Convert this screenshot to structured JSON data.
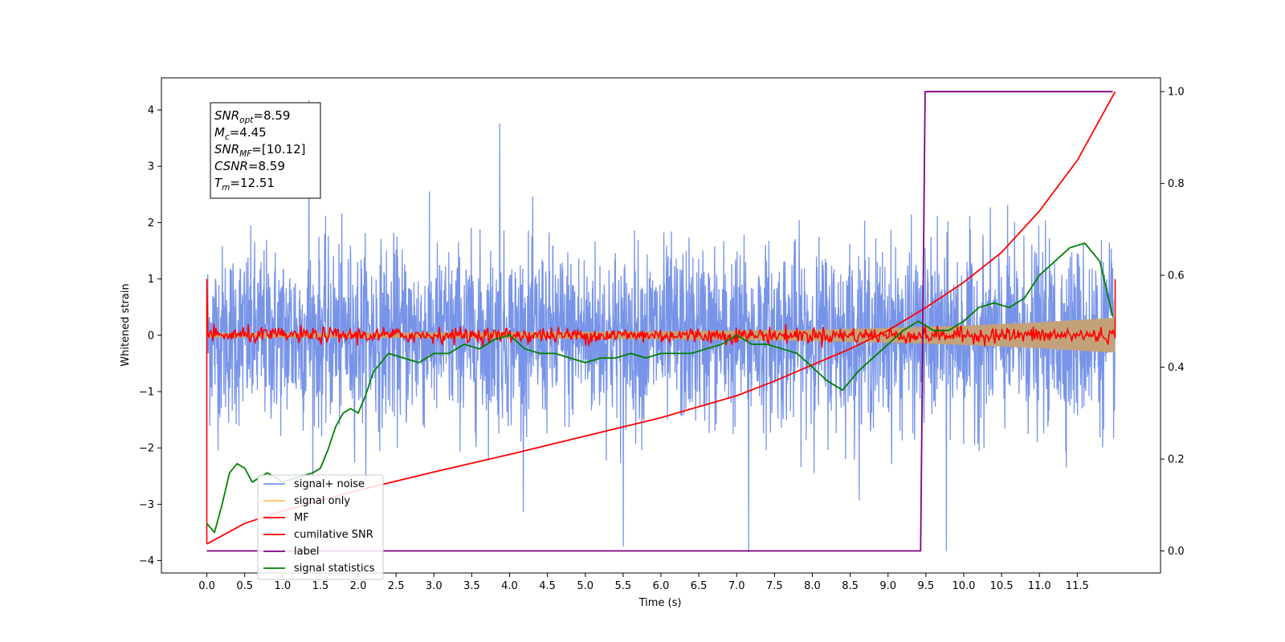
{
  "chart_data": {
    "type": "line",
    "title": "",
    "xlabel": "Time (s)",
    "ylabel": "Whitened strain",
    "y2label": "",
    "xlim": [
      -0.6,
      12.6
    ],
    "ylim": [
      -4.22,
      4.57
    ],
    "y2lim": [
      -0.048,
      1.03
    ],
    "xticks": [
      0.0,
      0.5,
      1.0,
      1.5,
      2.0,
      2.5,
      3.0,
      3.5,
      4.0,
      4.5,
      5.0,
      5.5,
      6.0,
      6.5,
      7.0,
      7.5,
      8.0,
      8.5,
      9.0,
      9.5,
      10.0,
      10.5,
      11.0,
      11.5
    ],
    "xtick_labels": [
      "0.0",
      "0.5",
      "1.0",
      "1.5",
      "2.0",
      "2.5",
      "3.0",
      "3.5",
      "4.0",
      "4.5",
      "5.0",
      "5.5",
      "6.0",
      "6.5",
      "7.0",
      "7.5",
      "8.0",
      "8.5",
      "9.0",
      "9.5",
      "10.0",
      "10.5",
      "11.0",
      "11.5"
    ],
    "yticks": [
      -4,
      -3,
      -2,
      -1,
      0,
      1,
      2,
      3,
      4
    ],
    "ytick_labels": [
      "−4",
      "−3",
      "−2",
      "−1",
      "0",
      "1",
      "2",
      "3",
      "4"
    ],
    "y2ticks": [
      0.0,
      0.2,
      0.4,
      0.6,
      0.8,
      1.0
    ],
    "y2tick_labels": [
      "0.0",
      "0.2",
      "0.4",
      "0.6",
      "0.8",
      "1.0"
    ],
    "grid": false,
    "legend_position": "lower-left",
    "series": [
      {
        "name": "signal+ noise",
        "axis": "left",
        "color": "#7894e8",
        "description": "noise-dominated strain time series between 0 and 12 s, mostly within about -2.5 to 2.5",
        "x_range": [
          0.0,
          12.0
        ],
        "typical_band": [
          -2.5,
          2.6
        ],
        "extremes": [
          {
            "x": 1.35,
            "y": 4.17
          },
          {
            "x": 3.87,
            "y": 3.76
          },
          {
            "x": 7.16,
            "y": -3.85
          },
          {
            "x": 9.77,
            "y": -3.83
          },
          {
            "x": 5.5,
            "y": -3.75
          }
        ]
      },
      {
        "name": "signal only",
        "axis": "left",
        "color": "#c3a27a",
        "description": "chirp envelope growing with time",
        "x": [
          0,
          3,
          6,
          8,
          9,
          10,
          11,
          11.5,
          12.0
        ],
        "amplitude": [
          0.04,
          0.05,
          0.07,
          0.1,
          0.13,
          0.17,
          0.23,
          0.27,
          0.31
        ]
      },
      {
        "name": "MF",
        "axis": "left",
        "color": "#ff0000",
        "description": "matched-filter output noisy around zero, spikes at both ends",
        "x_range": [
          0.0,
          12.0
        ],
        "typical_band": [
          -0.15,
          0.15
        ],
        "endpoints": [
          {
            "x": 0.0,
            "y": 1.0
          },
          {
            "x": 0.0,
            "y": -3.7
          },
          {
            "x": 12.0,
            "y": 1.0
          }
        ]
      },
      {
        "name": "cumilative SNR",
        "axis": "right",
        "color": "#ff0000",
        "x": [
          0.0,
          0.5,
          1,
          1.5,
          2,
          3,
          4,
          5,
          6,
          7,
          7.5,
          8,
          8.5,
          9,
          9.5,
          10,
          10.5,
          11,
          11.5,
          12.0
        ],
        "y": [
          0.015,
          0.06,
          0.087,
          0.11,
          0.132,
          0.172,
          0.21,
          0.25,
          0.29,
          0.338,
          0.37,
          0.405,
          0.44,
          0.48,
          0.53,
          0.585,
          0.65,
          0.74,
          0.85,
          1.0
        ]
      },
      {
        "name": "label",
        "axis": "right",
        "color": "#800080",
        "x": [
          0.0,
          9.43,
          9.49,
          11.97
        ],
        "y": [
          0.0,
          0.0,
          1.0,
          1.0
        ]
      },
      {
        "name": "signal statistics",
        "axis": "right",
        "color": "#008000",
        "x": [
          0.0,
          0.1,
          0.2,
          0.3,
          0.4,
          0.5,
          0.6,
          0.8,
          1.0,
          1.2,
          1.4,
          1.5,
          1.6,
          1.7,
          1.8,
          1.9,
          2.0,
          2.1,
          2.2,
          2.3,
          2.4,
          2.6,
          2.8,
          3.0,
          3.2,
          3.4,
          3.6,
          3.8,
          4.0,
          4.2,
          4.4,
          4.6,
          4.8,
          5.0,
          5.2,
          5.4,
          5.6,
          5.8,
          6.0,
          6.2,
          6.4,
          6.6,
          6.8,
          7.0,
          7.2,
          7.4,
          7.6,
          7.8,
          8.0,
          8.2,
          8.4,
          8.6,
          8.8,
          9.0,
          9.2,
          9.4,
          9.6,
          9.8,
          10.0,
          10.2,
          10.4,
          10.6,
          10.8,
          11.0,
          11.2,
          11.4,
          11.6,
          11.8,
          11.97
        ],
        "y": [
          0.06,
          0.04,
          0.1,
          0.17,
          0.19,
          0.18,
          0.15,
          0.17,
          0.15,
          0.16,
          0.17,
          0.18,
          0.22,
          0.27,
          0.3,
          0.31,
          0.3,
          0.34,
          0.39,
          0.41,
          0.43,
          0.42,
          0.41,
          0.43,
          0.43,
          0.45,
          0.44,
          0.46,
          0.47,
          0.44,
          0.43,
          0.43,
          0.42,
          0.41,
          0.42,
          0.42,
          0.43,
          0.42,
          0.43,
          0.43,
          0.43,
          0.44,
          0.45,
          0.47,
          0.45,
          0.45,
          0.44,
          0.43,
          0.4,
          0.37,
          0.35,
          0.39,
          0.42,
          0.45,
          0.48,
          0.5,
          0.48,
          0.48,
          0.5,
          0.53,
          0.54,
          0.53,
          0.55,
          0.6,
          0.63,
          0.66,
          0.67,
          0.63,
          0.51
        ]
      }
    ],
    "info_box": [
      {
        "main": "SNR",
        "sub": "opt",
        "value": "=8.59"
      },
      {
        "main": "M",
        "sub": "c",
        "value": "=4.45"
      },
      {
        "main": "SNR",
        "sub": "MF",
        "value": "=[10.12]"
      },
      {
        "main": "CSNR",
        "sub": "",
        "value": "=8.59"
      },
      {
        "main": "T",
        "sub": "m",
        "value": "=12.51"
      }
    ]
  }
}
